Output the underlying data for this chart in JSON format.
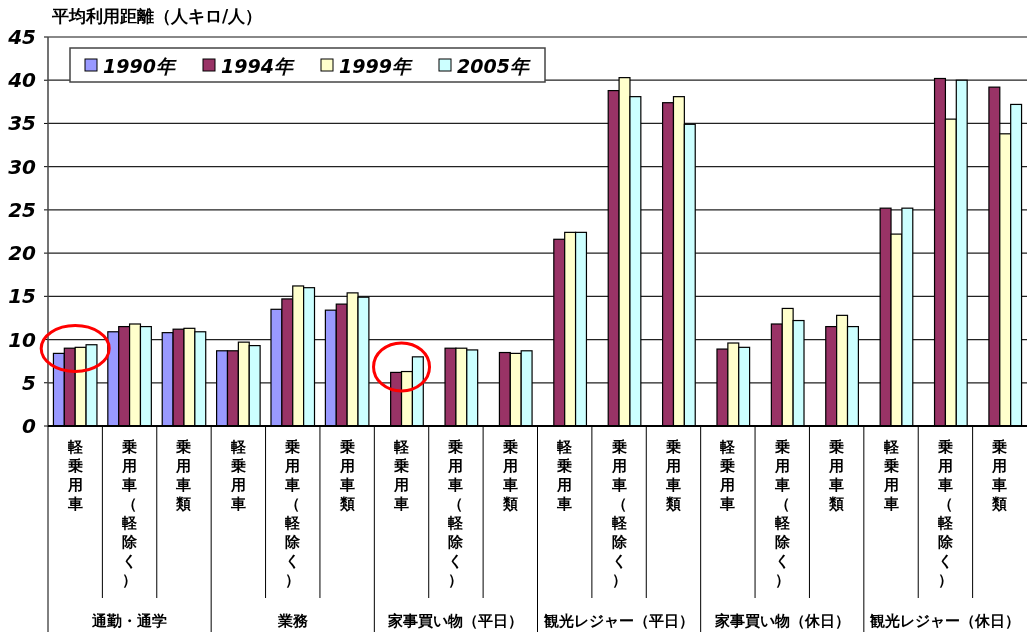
{
  "chart_data": {
    "type": "bar",
    "ylabel": "平均利用距離（人キロ/人）",
    "categories": [
      "軽乗用車",
      "乗用車（軽除く）",
      "乗用車類",
      "軽乗用車",
      "乗用車（軽除く）",
      "乗用車類",
      "軽乗用車",
      "乗用車（軽除く）",
      "乗用車類",
      "軽乗用車",
      "乗用車（軽除く）",
      "乗用車類",
      "軽乗用車",
      "乗用車（軽除く）",
      "乗用車類",
      "軽乗用車",
      "乗用車（軽除く）",
      "乗用車類"
    ],
    "series": [
      {
        "name": "1990年",
        "color": "#9999ff",
        "values": [
          8.4,
          10.9,
          10.8,
          8.7,
          13.5,
          13.4,
          null,
          null,
          null,
          null,
          null,
          null,
          null,
          null,
          null,
          null,
          null,
          null
        ]
      },
      {
        "name": "1994年",
        "color": "#993366",
        "values": [
          9.0,
          11.5,
          11.2,
          8.7,
          14.7,
          14.1,
          6.2,
          9.0,
          8.5,
          21.6,
          38.8,
          37.4,
          8.9,
          11.8,
          11.5,
          25.2,
          40.2,
          39.2
        ]
      },
      {
        "name": "1999年",
        "color": "#ffffcc",
        "values": [
          9.1,
          11.8,
          11.3,
          9.7,
          16.2,
          15.4,
          6.3,
          9.0,
          8.4,
          22.4,
          40.3,
          38.1,
          9.6,
          13.6,
          12.8,
          22.2,
          35.5,
          33.8
        ]
      },
      {
        "name": "2005年",
        "color": "#ccffff",
        "values": [
          9.4,
          11.5,
          10.9,
          9.3,
          16.0,
          14.9,
          8.0,
          8.8,
          8.7,
          22.4,
          38.1,
          34.9,
          9.1,
          12.2,
          11.5,
          25.2,
          40.0,
          37.2
        ]
      }
    ],
    "ylim": [
      0,
      45
    ],
    "yticks": [
      0,
      5,
      10,
      15,
      20,
      25,
      30,
      35,
      40,
      45
    ],
    "grid": "y",
    "legend": "top left",
    "annotations": [
      "通勤・通学",
      "業務",
      "家事買い物（平日）",
      "観光レジャー（平日）",
      "家事買い物（休日）",
      "観光レジャー（休日）"
    ]
  }
}
